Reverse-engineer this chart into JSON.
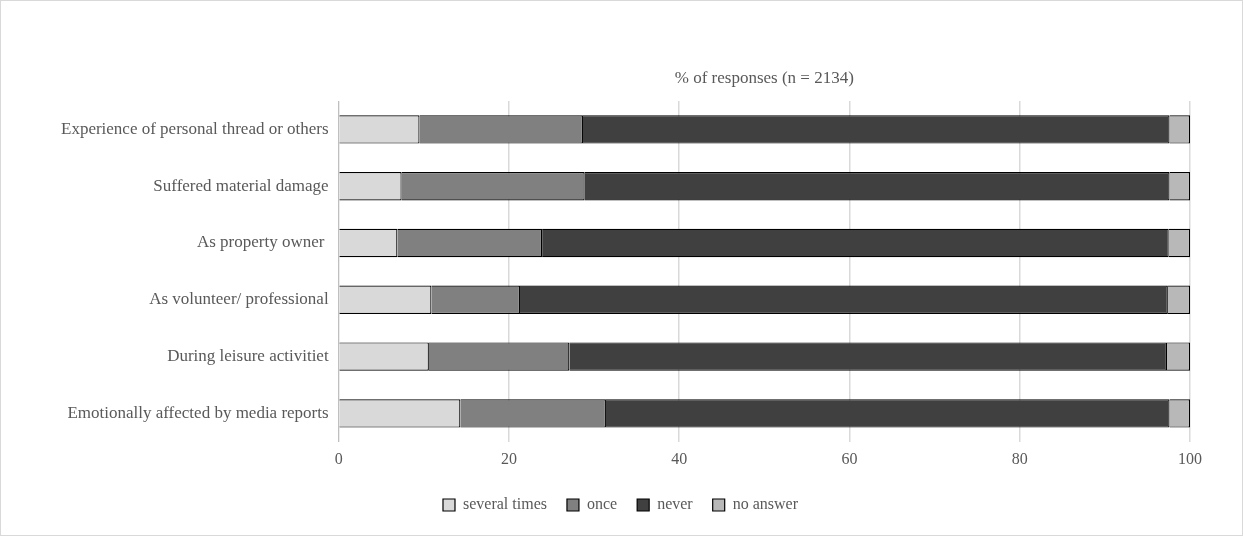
{
  "chart_data": {
    "type": "bar",
    "orientation": "horizontal",
    "stacked": true,
    "title": "% of responses (n = 2134)",
    "categories": [
      "Experience of personal thread or others",
      "Suffered material damage",
      "As property owner ",
      "As volunteer/ professional",
      "During leisure activitiet",
      "Emotionally affected by media reports"
    ],
    "series": [
      {
        "name": "several times",
        "color": "#d9d9d9",
        "values": [
          9.5,
          7.4,
          6.9,
          10.9,
          10.6,
          14.3
        ]
      },
      {
        "name": "once",
        "color": "#808080",
        "values": [
          19.2,
          21.5,
          17.0,
          10.4,
          16.5,
          17.1
        ]
      },
      {
        "name": "never",
        "color": "#404040",
        "values": [
          68.9,
          68.7,
          73.6,
          76.1,
          70.2,
          66.2
        ]
      },
      {
        "name": "no answer",
        "color": "#b8b8b8",
        "values": [
          2.4,
          2.4,
          2.5,
          2.6,
          2.7,
          2.4
        ]
      }
    ],
    "xlim": [
      0,
      100
    ],
    "xticks": [
      0,
      20,
      40,
      60,
      80,
      100
    ],
    "grid": "x",
    "legend": "bottom"
  }
}
